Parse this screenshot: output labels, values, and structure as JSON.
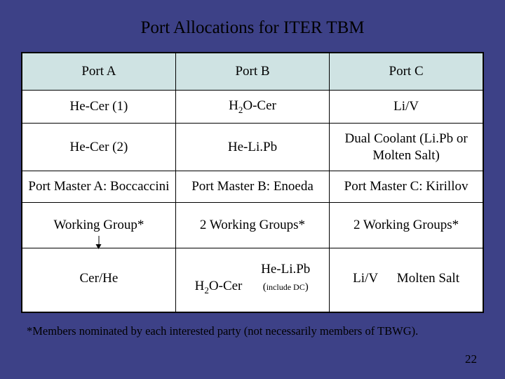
{
  "slide": {
    "title": "Port Allocations for ITER TBM",
    "page_number": "22",
    "footnote": "*Members nominated by each interested party (not necessarily members of TBWG).",
    "colors": {
      "background": "#3d4187",
      "header_fill": "#cfe3e3",
      "text": "#000000",
      "cell_fill": "#ffffff",
      "border": "#000000"
    },
    "typography": {
      "title_fontsize_pt": 25,
      "header_fontsize_pt": 19,
      "cell_fontsize_pt": 19,
      "footnote_fontsize_pt": 16,
      "font_family": "Georgia / Times-like serif"
    }
  },
  "table": {
    "type": "table",
    "columns": 3,
    "rows": 6,
    "headers": {
      "a": "Port A",
      "b": "Port B",
      "c": "Port C"
    },
    "row1": {
      "a": "He-Cer (1)",
      "b_pre": "H",
      "b_sub": "2",
      "b_post": "O-Cer",
      "c": "Li/V"
    },
    "row2": {
      "a": "He-Cer (2)",
      "b": "He-Li.Pb",
      "c": "Dual Coolant (Li.Pb or Molten Salt)"
    },
    "row3": {
      "a": "Port Master A: Boccaccini",
      "b": "Port Master B: Enoeda",
      "c": "Port Master C: Kirillov"
    },
    "row4": {
      "a": "Working Group*",
      "b": "2 Working Groups*",
      "c": "2 Working Groups*"
    },
    "row5": {
      "a": "Cer/He",
      "b1_pre": "H",
      "b1_sub": "2",
      "b1_post": "O-Cer",
      "b2": "He-Li.Pb",
      "b2_note_open": "(",
      "b2_note_small": "include DC",
      "b2_note_close": ")",
      "c1": "Li/V",
      "c2": "Molten Salt"
    }
  }
}
